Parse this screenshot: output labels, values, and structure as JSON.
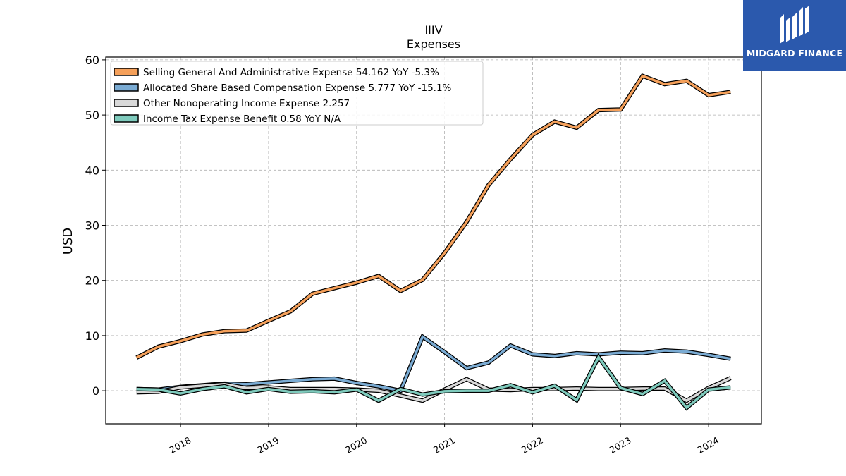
{
  "chart_data": {
    "type": "line",
    "title": "IIIV",
    "subtitle": "Expenses",
    "ylabel": "USD",
    "xlabel": "",
    "ylim": [
      -6,
      60.5
    ],
    "yticks": [
      0,
      10,
      20,
      30,
      40,
      50,
      60
    ],
    "xlim": [
      2017.15,
      2024.6
    ],
    "xticks": [
      2018,
      2019,
      2020,
      2021,
      2022,
      2023,
      2024
    ],
    "grid": true,
    "legend_position": "top-left",
    "x": [
      2017.5,
      2017.75,
      2018.0,
      2018.25,
      2018.5,
      2018.75,
      2019.0,
      2019.25,
      2019.5,
      2019.75,
      2020.0,
      2020.25,
      2020.5,
      2020.75,
      2021.0,
      2021.25,
      2021.5,
      2021.75,
      2022.0,
      2022.25,
      2022.5,
      2022.75,
      2023.0,
      2023.25,
      2023.5,
      2023.75,
      2024.0,
      2024.25
    ],
    "series": [
      {
        "name": "Selling General And Administrative Expense",
        "legend": "Selling General And Administrative Expense  54.162 YoY -5.3%",
        "color": "#f5a05a",
        "values": [
          6.0,
          8.0,
          9.0,
          10.2,
          10.8,
          10.9,
          12.7,
          14.4,
          17.6,
          18.6,
          19.6,
          20.8,
          18.1,
          20.1,
          25.0,
          30.6,
          37.3,
          42.0,
          46.4,
          48.8,
          47.7,
          50.9,
          51.0,
          57.1,
          55.6,
          56.2,
          53.6,
          54.2
        ]
      },
      {
        "name": "Allocated Share Based Compensation Expense",
        "legend": "Allocated Share Based Compensation Expense  5.777 YoY -15.1%",
        "color": "#7aabd3",
        "values": [
          0.3,
          0.2,
          0.7,
          1.0,
          1.3,
          1.2,
          1.5,
          1.8,
          2.1,
          2.2,
          1.4,
          0.8,
          0.0,
          9.8,
          7.0,
          4.1,
          5.1,
          8.2,
          6.6,
          6.3,
          6.8,
          6.6,
          6.9,
          6.8,
          7.3,
          7.1,
          6.5,
          5.8
        ]
      },
      {
        "name": "Other Nonoperating Income Expense",
        "legend": "Other Nonoperating Income Expense  2.257",
        "color": "#d9d9d9",
        "values": [
          -0.3,
          -0.2,
          0.6,
          0.9,
          1.2,
          0.5,
          0.6,
          0.3,
          0.3,
          0.3,
          0.2,
          0.0,
          -0.9,
          -1.8,
          0.2,
          2.1,
          0.2,
          0.1,
          0.3,
          0.3,
          0.4,
          0.3,
          0.3,
          0.4,
          0.4,
          -1.8,
          0.5,
          2.3
        ]
      },
      {
        "name": "Income Tax Expense Benefit",
        "legend": "Income Tax Expense Benefit  0.58 YoY N/A",
        "color": "#7fcbbd",
        "values": [
          0.3,
          0.2,
          -0.5,
          0.3,
          0.8,
          -0.3,
          0.3,
          -0.2,
          -0.1,
          -0.3,
          0.2,
          -1.8,
          0.3,
          -0.7,
          -0.1,
          0.0,
          0.0,
          1.0,
          -0.3,
          0.9,
          -1.7,
          6.1,
          0.5,
          -0.6,
          1.8,
          -3.1,
          0.2,
          0.6
        ]
      }
    ]
  },
  "logo": {
    "text": "MIDGARD FINANCE",
    "color": "#2b59ad"
  }
}
